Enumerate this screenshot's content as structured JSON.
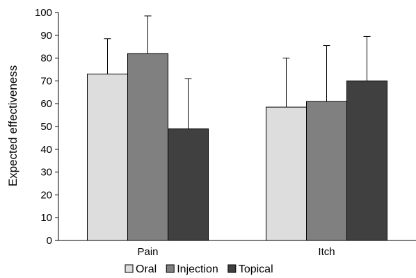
{
  "chart_data": {
    "type": "bar",
    "title": "",
    "xlabel": "",
    "ylabel": "Expected effectiveness",
    "ylim": [
      0,
      100
    ],
    "yticks": [
      0,
      10,
      20,
      30,
      40,
      50,
      60,
      70,
      80,
      90,
      100
    ],
    "categories": [
      "Pain",
      "Itch"
    ],
    "series": [
      {
        "name": "Oral",
        "values": [
          73,
          58.5
        ],
        "errors": [
          15.5,
          21.5
        ],
        "color": "#dddddd"
      },
      {
        "name": "Injection",
        "values": [
          82,
          61
        ],
        "errors": [
          16.5,
          24.5
        ],
        "color": "#808080"
      },
      {
        "name": "Topical",
        "values": [
          49,
          70
        ],
        "errors": [
          22,
          19.5
        ],
        "color": "#404040"
      }
    ],
    "grid": false,
    "legend": "bottom-center",
    "error_bars": "upper-only"
  }
}
